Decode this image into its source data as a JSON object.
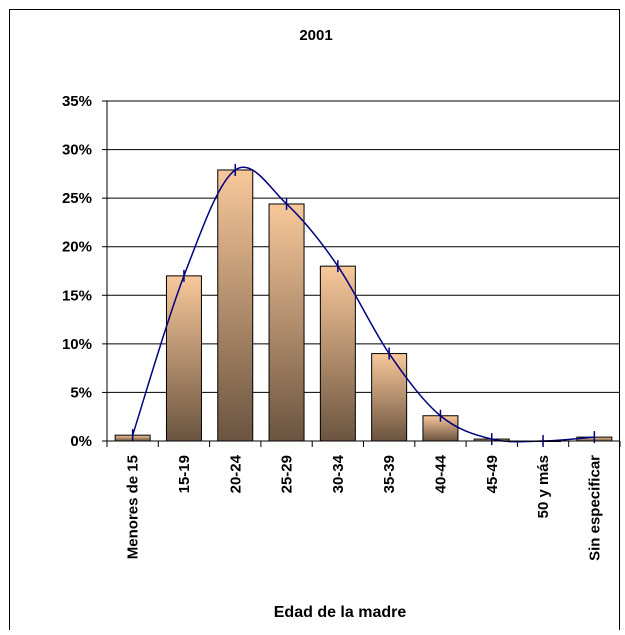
{
  "chart_data": {
    "type": "bar",
    "title": "2001",
    "x_label": "Edad de la madre",
    "categories": [
      "Menores de 15",
      "15-19",
      "20-24",
      "25-29",
      "30-34",
      "35-39",
      "40-44",
      "45-49",
      "50 y más",
      "Sin especificar"
    ],
    "values": [
      0.6,
      17.0,
      27.9,
      24.4,
      18.0,
      9.0,
      2.6,
      0.2,
      0.0,
      0.4
    ],
    "color": "#f8c89a",
    "line_color": "#000080",
    "smooth_line": true,
    "ylim": [
      0,
      35
    ],
    "yticks": [
      {
        "value": 0,
        "label": "0%"
      },
      {
        "value": 5,
        "label": "5%"
      },
      {
        "value": 10,
        "label": "10%"
      },
      {
        "value": 15,
        "label": "15%"
      },
      {
        "value": 20,
        "label": "20%"
      },
      {
        "value": 25,
        "label": "25%"
      },
      {
        "value": 30,
        "label": "30%"
      },
      {
        "value": 35,
        "label": "35%"
      }
    ],
    "grid": true
  }
}
